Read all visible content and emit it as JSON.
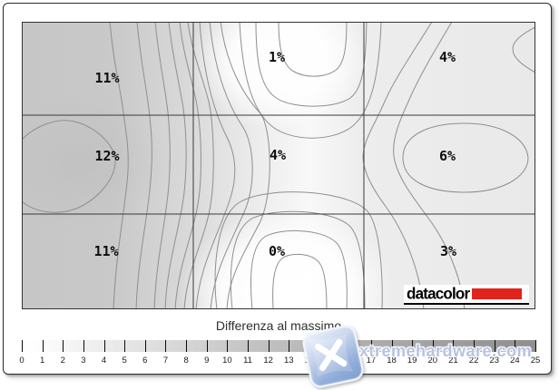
{
  "chart_data": {
    "type": "heatmap",
    "title": "Differenza al massimo",
    "grid": {
      "rows": 3,
      "cols": 3
    },
    "values_percent": [
      [
        11,
        1,
        4
      ],
      [
        12,
        4,
        6
      ],
      [
        11,
        0,
        3
      ]
    ],
    "unit": "%",
    "colorbar": {
      "label": "Differenza al massimo",
      "min": 0,
      "max": 25,
      "tick_step": 1,
      "gradient": [
        "#ffffff",
        "#8e8e8e"
      ]
    },
    "legend_position": "bottom",
    "grid_on": true
  },
  "plot": {
    "grid_values": [
      {
        "text": "11%"
      },
      {
        "text": "1%"
      },
      {
        "text": "4%"
      },
      {
        "text": "12%"
      },
      {
        "text": "4%"
      },
      {
        "text": "6%"
      },
      {
        "text": "11%"
      },
      {
        "text": "0%"
      },
      {
        "text": "3%"
      }
    ]
  },
  "scale": {
    "title": "Differenza al massimo",
    "ticks": [
      "0",
      "1",
      "2",
      "3",
      "4",
      "5",
      "6",
      "7",
      "8",
      "9",
      "10",
      "11",
      "12",
      "13",
      "14",
      "15",
      "16",
      "17",
      "18",
      "19",
      "20",
      "21",
      "22",
      "23",
      "24",
      "25"
    ]
  },
  "logo": {
    "text": "datacolor",
    "bar_color": "#e2231c"
  },
  "watermark": {
    "text": "xtremehardware.com",
    "icon": "xtremehardware-x-logo",
    "color": "#b5c3e3"
  },
  "colors": {
    "contour_line": "#8f8f8f",
    "left_region_gray": "#c7c7c7",
    "right_region_gray": "#e9e9e9",
    "bright_region": "#ffffff",
    "frame": "#2b2b2b"
  }
}
